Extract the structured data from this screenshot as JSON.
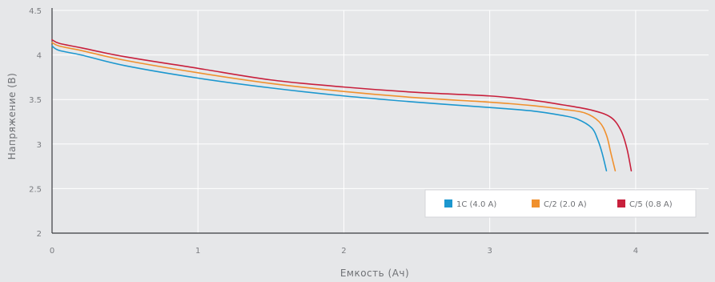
{
  "chart_data": {
    "type": "line",
    "xlabel": "Емкость (Ач)",
    "ylabel": "Напряжение (В)",
    "xlim": [
      0,
      4.5
    ],
    "ylim": [
      2,
      4.5
    ],
    "x_ticks": [
      0,
      1,
      2,
      3,
      4
    ],
    "y_ticks": [
      2,
      2.5,
      3,
      3.5,
      4,
      4.5
    ],
    "x_tick_labels": [
      "0",
      "1",
      "2",
      "3",
      "4"
    ],
    "y_tick_labels": [
      "2",
      "2.5",
      "3",
      "3.5",
      "4",
      "4.5"
    ],
    "grid": true,
    "legend_position": "bottom-right",
    "series": [
      {
        "name": "1C (4.0 A)",
        "color": "#1c97cf",
        "points": [
          [
            0,
            4.1
          ],
          [
            0.05,
            4.05
          ],
          [
            0.2,
            4.0
          ],
          [
            0.5,
            3.88
          ],
          [
            1.0,
            3.74
          ],
          [
            1.5,
            3.63
          ],
          [
            2.0,
            3.54
          ],
          [
            2.5,
            3.47
          ],
          [
            3.0,
            3.41
          ],
          [
            3.3,
            3.37
          ],
          [
            3.5,
            3.32
          ],
          [
            3.6,
            3.28
          ],
          [
            3.7,
            3.18
          ],
          [
            3.74,
            3.05
          ],
          [
            3.77,
            2.9
          ],
          [
            3.8,
            2.7
          ]
        ]
      },
      {
        "name": "C/2 (2.0 A)",
        "color": "#f0902d",
        "points": [
          [
            0,
            4.14
          ],
          [
            0.05,
            4.1
          ],
          [
            0.2,
            4.05
          ],
          [
            0.5,
            3.94
          ],
          [
            1.0,
            3.8
          ],
          [
            1.5,
            3.68
          ],
          [
            2.0,
            3.59
          ],
          [
            2.5,
            3.52
          ],
          [
            3.0,
            3.47
          ],
          [
            3.3,
            3.43
          ],
          [
            3.5,
            3.39
          ],
          [
            3.65,
            3.35
          ],
          [
            3.75,
            3.25
          ],
          [
            3.8,
            3.1
          ],
          [
            3.83,
            2.9
          ],
          [
            3.86,
            2.7
          ]
        ]
      },
      {
        "name": "C/5 (0.8 A)",
        "color": "#c8203c",
        "points": [
          [
            0,
            4.17
          ],
          [
            0.05,
            4.13
          ],
          [
            0.2,
            4.08
          ],
          [
            0.5,
            3.98
          ],
          [
            1.0,
            3.85
          ],
          [
            1.5,
            3.72
          ],
          [
            2.0,
            3.64
          ],
          [
            2.5,
            3.58
          ],
          [
            3.0,
            3.54
          ],
          [
            3.3,
            3.49
          ],
          [
            3.5,
            3.44
          ],
          [
            3.7,
            3.38
          ],
          [
            3.83,
            3.3
          ],
          [
            3.9,
            3.15
          ],
          [
            3.94,
            2.95
          ],
          [
            3.97,
            2.7
          ]
        ]
      }
    ]
  }
}
